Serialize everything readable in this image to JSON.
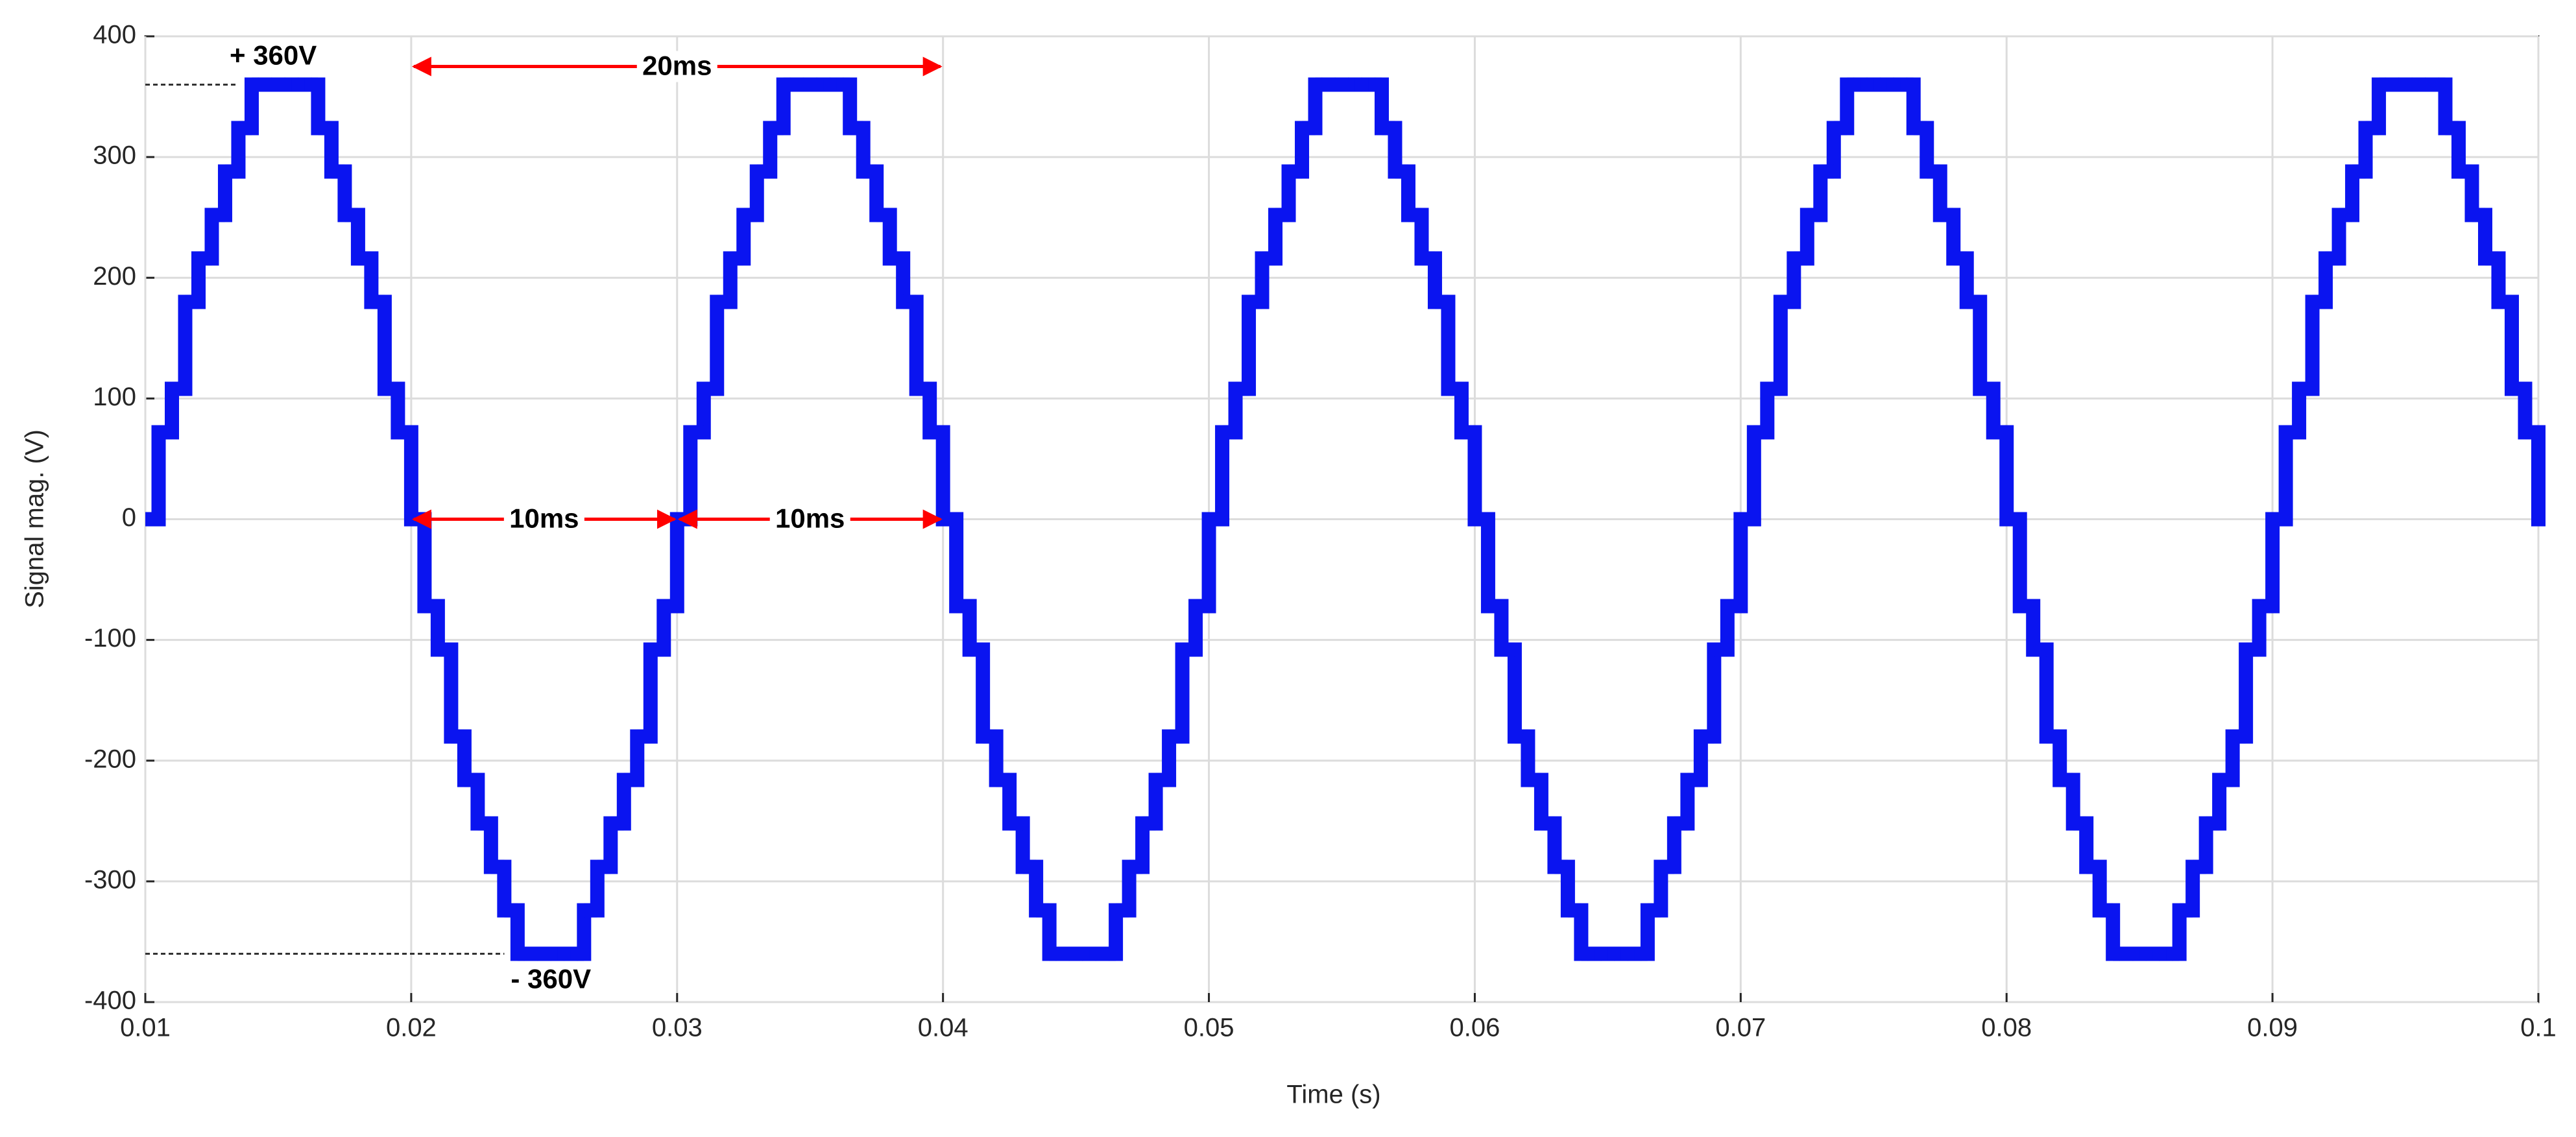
{
  "chart_data": {
    "type": "step-line",
    "xlabel": "Time (s)",
    "ylabel": "Signal mag. (V)",
    "xlim": [
      0.01,
      0.1
    ],
    "ylim": [
      -400,
      400
    ],
    "xticks": [
      0.01,
      0.02,
      0.03,
      0.04,
      0.05,
      0.06,
      0.07,
      0.08,
      0.09,
      0.1
    ],
    "yticks": [
      -400,
      -300,
      -200,
      -100,
      0,
      100,
      200,
      300,
      400
    ],
    "grid": true,
    "x": [
      0.01,
      0.0105,
      0.011,
      0.0115,
      0.012,
      0.0125,
      0.013,
      0.0135,
      0.014,
      0.0145,
      0.015,
      0.0155,
      0.016,
      0.0165,
      0.017,
      0.0175,
      0.018,
      0.0185,
      0.019,
      0.0195,
      0.02,
      0.0205,
      0.021,
      0.0215,
      0.022,
      0.0225,
      0.023,
      0.0235,
      0.024,
      0.0245,
      0.025,
      0.0255,
      0.026,
      0.0265,
      0.027,
      0.0275,
      0.028,
      0.0285,
      0.029,
      0.0295,
      0.03,
      0.0305,
      0.031,
      0.0315,
      0.032,
      0.0325,
      0.033,
      0.0335,
      0.034,
      0.0345,
      0.035,
      0.0355,
      0.036,
      0.0365,
      0.037,
      0.0375,
      0.038,
      0.0385,
      0.039,
      0.0395,
      0.04,
      0.0405,
      0.041,
      0.0415,
      0.042,
      0.0425,
      0.043,
      0.0435,
      0.044,
      0.0445,
      0.045,
      0.0455,
      0.046,
      0.0465,
      0.047,
      0.0475,
      0.048,
      0.0485,
      0.049,
      0.0495,
      0.05,
      0.0505,
      0.051,
      0.0515,
      0.052,
      0.0525,
      0.053,
      0.0535,
      0.054,
      0.0545,
      0.055,
      0.0555,
      0.056,
      0.0565,
      0.057,
      0.0575,
      0.058,
      0.0585,
      0.059,
      0.0595,
      0.06,
      0.0605,
      0.061,
      0.0615,
      0.062,
      0.0625,
      0.063,
      0.0635,
      0.064,
      0.0645,
      0.065,
      0.0655,
      0.066,
      0.0665,
      0.067,
      0.0675,
      0.068,
      0.0685,
      0.069,
      0.0695,
      0.07,
      0.0705,
      0.071,
      0.0715,
      0.072,
      0.0725,
      0.073,
      0.0735,
      0.074,
      0.0745,
      0.075,
      0.0755,
      0.076,
      0.0765,
      0.077,
      0.0775,
      0.078,
      0.0785,
      0.079,
      0.0795,
      0.08,
      0.0805,
      0.081,
      0.0815,
      0.082,
      0.0825,
      0.083,
      0.0835,
      0.084,
      0.0845,
      0.085,
      0.0855,
      0.086,
      0.0865,
      0.087,
      0.0875,
      0.088,
      0.0885,
      0.089,
      0.0895,
      0.09,
      0.0905,
      0.091,
      0.0915,
      0.092,
      0.0925,
      0.093,
      0.0935,
      0.094,
      0.0945,
      0.095,
      0.0955,
      0.096,
      0.0965,
      0.097,
      0.0975,
      0.098,
      0.0985,
      0.099,
      0.0995,
      0.1
    ],
    "series": [
      {
        "color": "#0a14f0",
        "values": [
          0,
          72,
          108,
          180,
          216,
          252,
          288,
          324,
          360,
          360,
          360,
          360,
          360,
          324,
          288,
          252,
          216,
          180,
          108,
          72,
          0,
          -72,
          -108,
          -180,
          -216,
          -252,
          -288,
          -324,
          -360,
          -360,
          -360,
          -360,
          -360,
          -324,
          -288,
          -252,
          -216,
          -180,
          -108,
          -72,
          0,
          72,
          108,
          180,
          216,
          252,
          288,
          324,
          360,
          360,
          360,
          360,
          360,
          324,
          288,
          252,
          216,
          180,
          108,
          72,
          0,
          -72,
          -108,
          -180,
          -216,
          -252,
          -288,
          -324,
          -360,
          -360,
          -360,
          -360,
          -360,
          -324,
          -288,
          -252,
          -216,
          -180,
          -108,
          -72,
          0,
          72,
          108,
          180,
          216,
          252,
          288,
          324,
          360,
          360,
          360,
          360,
          360,
          324,
          288,
          252,
          216,
          180,
          108,
          72,
          0,
          -72,
          -108,
          -180,
          -216,
          -252,
          -288,
          -324,
          -360,
          -360,
          -360,
          -360,
          -360,
          -324,
          -288,
          -252,
          -216,
          -180,
          -108,
          -72,
          0,
          72,
          108,
          180,
          216,
          252,
          288,
          324,
          360,
          360,
          360,
          360,
          360,
          324,
          288,
          252,
          216,
          180,
          108,
          72,
          0,
          -72,
          -108,
          -180,
          -216,
          -252,
          -288,
          -324,
          -360,
          -360,
          -360,
          -360,
          -360,
          -324,
          -288,
          -252,
          -216,
          -180,
          -108,
          -72,
          0,
          72,
          108,
          180,
          216,
          252,
          288,
          324,
          360,
          360,
          360,
          360,
          360,
          324,
          288,
          252,
          216,
          180,
          108,
          72,
          0
        ]
      }
    ],
    "annotations": [
      {
        "text": "20ms",
        "from": 0.02,
        "to": 0.04,
        "y": 375,
        "color": "#ff0000"
      },
      {
        "text": "10ms",
        "from": 0.02,
        "to": 0.03,
        "y": 0,
        "color": "#ff0000"
      },
      {
        "text": "10ms",
        "from": 0.03,
        "to": 0.04,
        "y": 0,
        "color": "#ff0000"
      }
    ],
    "levels": [
      {
        "text": "+ 360V",
        "y": 360,
        "to": 0.0135
      },
      {
        "text": "- 360V",
        "y": -360,
        "to": 0.0235
      }
    ]
  }
}
